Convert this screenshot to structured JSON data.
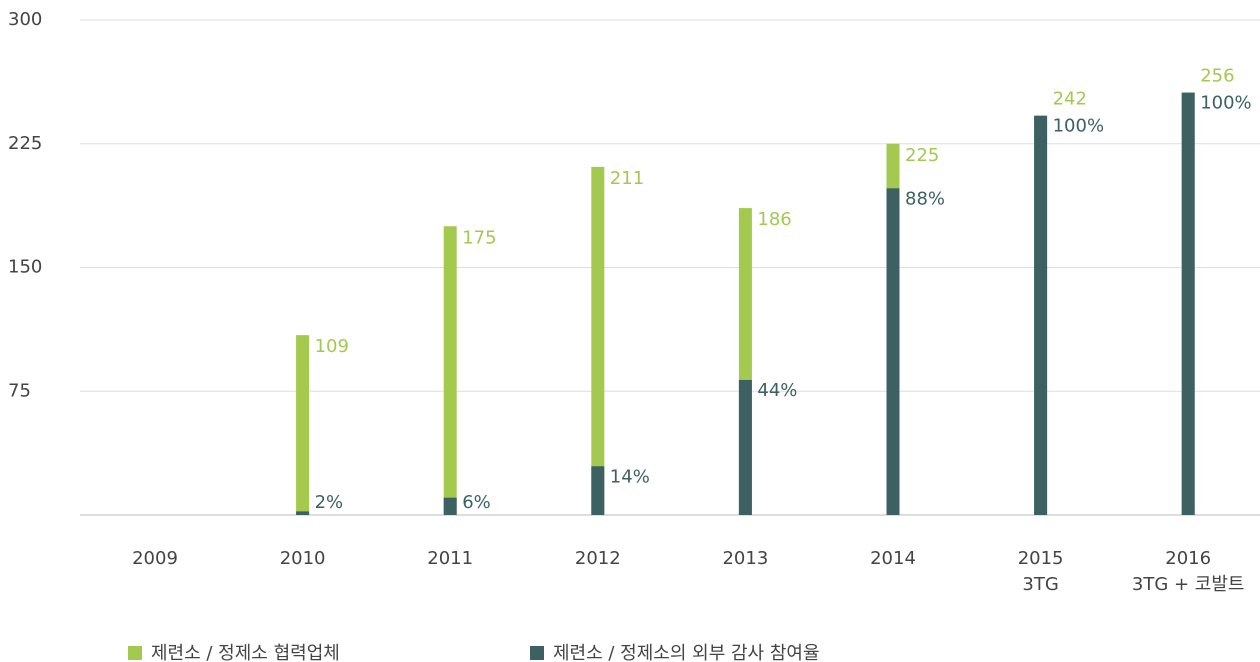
{
  "chart_data": {
    "type": "bar",
    "categories": [
      "2009",
      "2010",
      "2011",
      "2012",
      "2013",
      "2014",
      "2015",
      "2016"
    ],
    "category_notes": [
      null,
      null,
      null,
      null,
      null,
      null,
      "3TG",
      "3TG + 코발트"
    ],
    "series": [
      {
        "name": "제련소 / 정제소 협력업체",
        "color": "#a3c94f",
        "values": [
          null,
          109,
          175,
          211,
          186,
          225,
          242,
          256
        ]
      },
      {
        "name": "제련소 / 정제소의 외부 감사 참여율",
        "color": "#3d6163",
        "values": [
          null,
          2,
          6,
          14,
          44,
          88,
          100,
          100
        ],
        "value_labels": [
          null,
          "2%",
          "6%",
          "14%",
          "44%",
          "88%",
          "100%",
          "100%"
        ]
      }
    ],
    "ylim": [
      0,
      300
    ],
    "yticks": [
      75,
      150,
      225,
      300
    ],
    "grid": true,
    "legend": "bottom"
  }
}
